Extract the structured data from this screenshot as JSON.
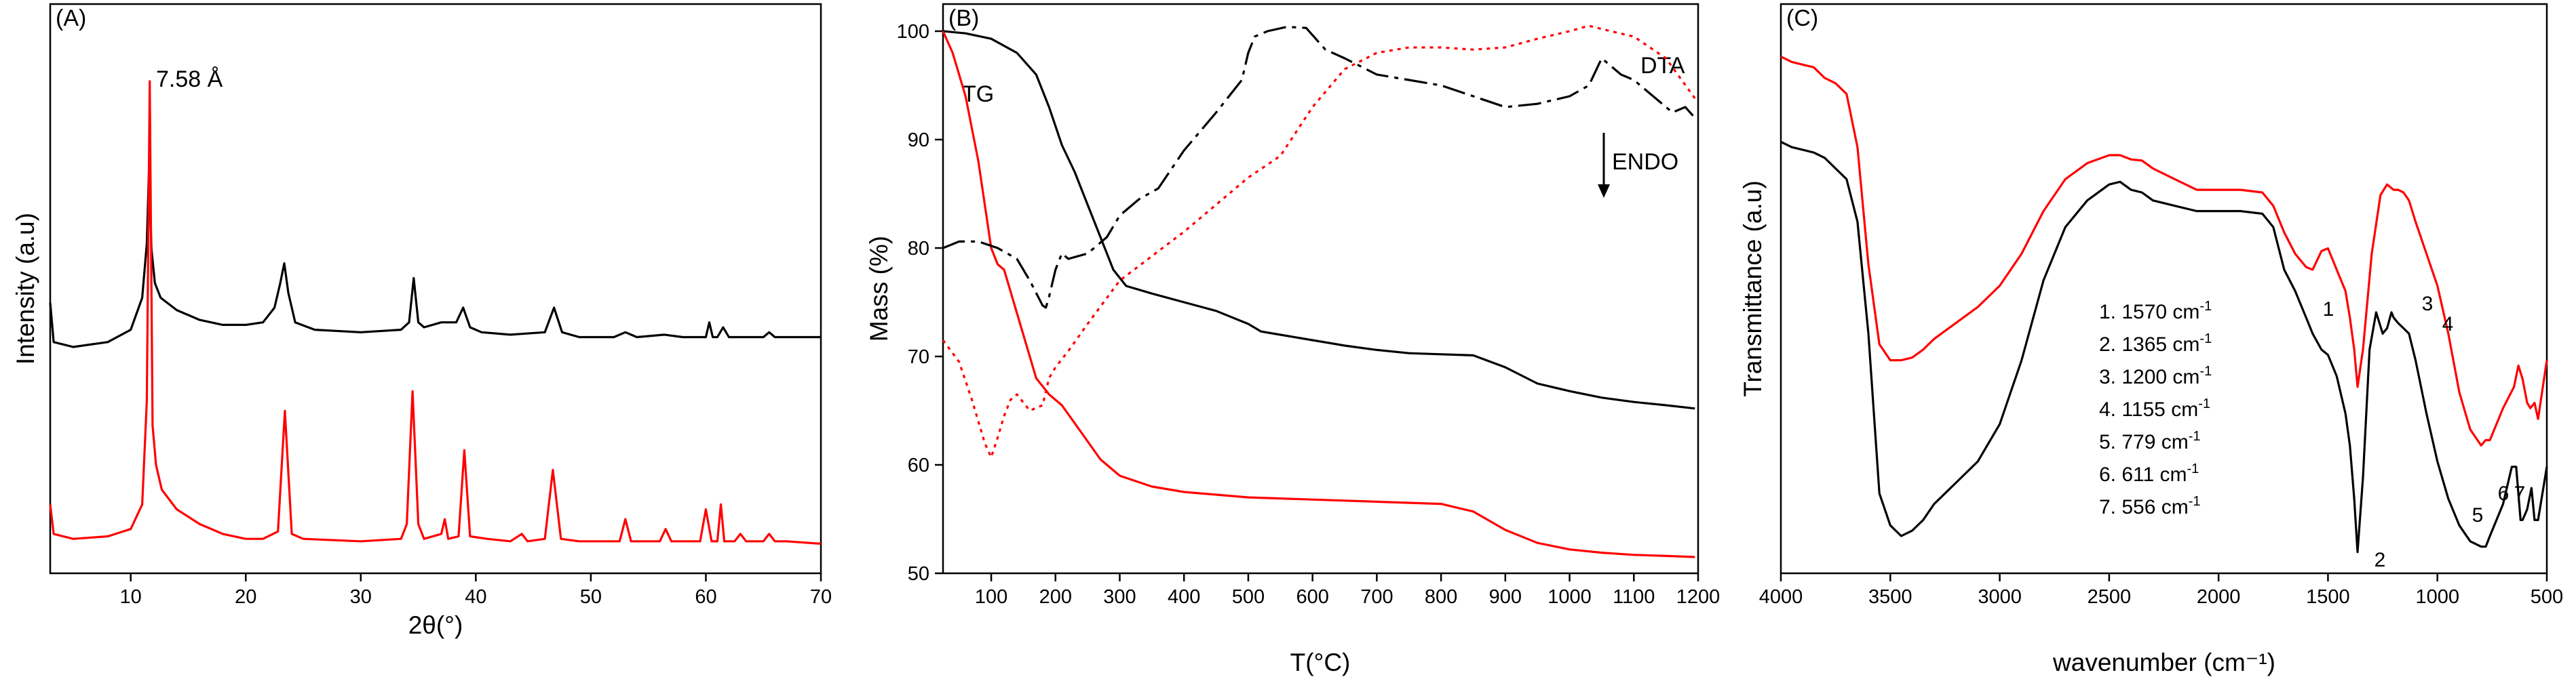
{
  "chart_data": [
    {
      "type": "line",
      "panel_label": "(A)",
      "xlabel": "2θ(°)",
      "ylabel": "Intensity (a.u)",
      "xlim": [
        3,
        70
      ],
      "ylim": [
        0,
        100
      ],
      "x_ticks": [
        "10",
        "20",
        "30",
        "40",
        "50",
        "60",
        "70"
      ],
      "y_ticks_shown": false,
      "annotation": "7.58 Å",
      "series": [
        {
          "name": "black pattern",
          "color": "#000000",
          "x": [
            3,
            3.3,
            5,
            8,
            10,
            11,
            11.4,
            11.6,
            11.8,
            12.1,
            12.6,
            14,
            16,
            18,
            20,
            21.5,
            22.5,
            23,
            23.35,
            23.7,
            24.3,
            26,
            30,
            33.5,
            34.2,
            34.6,
            35,
            35.5,
            37,
            38.3,
            38.9,
            39.5,
            40.5,
            43,
            46,
            46.8,
            47.5,
            49,
            52,
            53,
            54,
            56.4,
            58,
            60,
            60.3,
            60.6,
            61,
            61.5,
            62,
            63,
            64,
            65,
            65.5,
            66,
            68,
            70
          ],
          "y": [
            55,
            47,
            46,
            47,
            49.5,
            56,
            67,
            83,
            66,
            59,
            56,
            53.5,
            51.5,
            50.5,
            50.5,
            51,
            54,
            59,
            63,
            57,
            51,
            49.5,
            49,
            49.5,
            51,
            60,
            51,
            50,
            51,
            51,
            54,
            50,
            49,
            48.5,
            49,
            54,
            49,
            48,
            48,
            49,
            48,
            48.5,
            48,
            48,
            51,
            48,
            48,
            50,
            48,
            48,
            48,
            48,
            49,
            48,
            48,
            48
          ]
        },
        {
          "name": "red pattern",
          "color": "#ff0000",
          "x": [
            3,
            3.3,
            5,
            8,
            10,
            11,
            11.4,
            11.65,
            11.9,
            12.2,
            12.7,
            14,
            16,
            18,
            20,
            21.5,
            22.8,
            23.4,
            24,
            25,
            30,
            33.5,
            34,
            34.5,
            35,
            35.5,
            37,
            37.3,
            37.6,
            38.5,
            39,
            39.5,
            41,
            43,
            44,
            44.5,
            46,
            46.7,
            47.4,
            49,
            52.5,
            53,
            53.5,
            56,
            56.5,
            57,
            59.5,
            60,
            60.5,
            61,
            61.3,
            61.6,
            62.5,
            63,
            63.5,
            65,
            65.5,
            66,
            67,
            70
          ],
          "y": [
            14,
            8,
            7,
            7.5,
            9,
            14,
            35,
            100,
            30,
            22,
            17,
            13,
            10,
            8,
            7,
            7,
            8.5,
            33,
            8,
            7,
            6.5,
            7,
            10,
            37,
            10,
            7,
            8,
            11,
            7,
            7.5,
            25,
            7.5,
            7,
            6.5,
            8,
            6.5,
            7,
            21,
            7,
            6.5,
            6.5,
            11,
            6.5,
            6.5,
            9,
            6.5,
            6.5,
            13,
            6.5,
            6.5,
            14,
            6.5,
            6.5,
            8,
            6.5,
            6.5,
            8,
            6.5,
            6.5,
            6
          ]
        }
      ]
    },
    {
      "type": "line",
      "panel_label": "(B)",
      "xlabel": "T(°C)",
      "ylabel": "Mass (%)",
      "xlim": [
        25,
        1200
      ],
      "ylim": [
        50,
        102.5
      ],
      "x_ticks": [
        100,
        200,
        300,
        400,
        500,
        600,
        700,
        800,
        900,
        1000,
        1100,
        1200
      ],
      "y_ticks": [
        50,
        60,
        70,
        80,
        90,
        100
      ],
      "annotations": [
        "TG",
        "DTA",
        "ENDO"
      ],
      "series": [
        {
          "name": "TG black",
          "color": "#000000",
          "style": "solid",
          "x": [
            25,
            60,
            100,
            140,
            170,
            190,
            210,
            230,
            250,
            270,
            290,
            310,
            350,
            400,
            450,
            500,
            520,
            550,
            600,
            650,
            700,
            750,
            800,
            850,
            900,
            950,
            1000,
            1050,
            1100,
            1150,
            1195
          ],
          "y": [
            100,
            99.8,
            99.3,
            98,
            96,
            93,
            89.5,
            87,
            84,
            81,
            78,
            76.5,
            75.8,
            75,
            74.2,
            73,
            72.3,
            72,
            71.5,
            71,
            70.6,
            70.3,
            70.2,
            70.1,
            69,
            67.5,
            66.8,
            66.2,
            65.8,
            65.5,
            65.2
          ]
        },
        {
          "name": "TG red",
          "color": "#ff0000",
          "style": "solid",
          "x": [
            25,
            40,
            60,
            80,
            100,
            110,
            120,
            130,
            150,
            170,
            190,
            210,
            240,
            270,
            300,
            350,
            400,
            500,
            600,
            700,
            800,
            850,
            900,
            950,
            1000,
            1050,
            1100,
            1150,
            1195
          ],
          "y": [
            100,
            98,
            94,
            88,
            80,
            78.5,
            78,
            76,
            72,
            68,
            66.5,
            65.5,
            63,
            60.5,
            59,
            58,
            57.5,
            57,
            56.8,
            56.6,
            56.4,
            55.7,
            54,
            52.8,
            52.2,
            51.9,
            51.7,
            51.6,
            51.5
          ]
        },
        {
          "name": "DTA black",
          "color": "#000000",
          "style": "dashdot",
          "x": [
            25,
            50,
            80,
            110,
            140,
            160,
            180,
            185,
            190,
            200,
            210,
            220,
            250,
            280,
            300,
            330,
            360,
            400,
            450,
            490,
            500,
            510,
            530,
            560,
            590,
            620,
            650,
            700,
            750,
            800,
            850,
            900,
            950,
            1000,
            1030,
            1050,
            1080,
            1100,
            1120,
            1140,
            1160,
            1180,
            1195
          ],
          "y": [
            80,
            80.6,
            80.6,
            80,
            79,
            77,
            74.7,
            74.5,
            75.5,
            78,
            79.5,
            79,
            79.5,
            81,
            83,
            84.5,
            85.5,
            89,
            92.5,
            95.5,
            98,
            99.5,
            100,
            100.4,
            100.3,
            98.3,
            97.5,
            96,
            95.5,
            95,
            94,
            93,
            93.3,
            94,
            95,
            97.5,
            96,
            95.5,
            94.5,
            93.5,
            92.5,
            93,
            92
          ]
        },
        {
          "name": "DTA red",
          "color": "#ff0000",
          "style": "dotted",
          "x": [
            25,
            50,
            70,
            90,
            100,
            110,
            120,
            130,
            140,
            160,
            180,
            190,
            200,
            220,
            250,
            300,
            400,
            450,
            500,
            550,
            600,
            650,
            700,
            750,
            800,
            850,
            900,
            950,
            1000,
            1030,
            1050,
            1100,
            1150,
            1195
          ],
          "y": [
            71.5,
            69.5,
            66,
            62,
            60.7,
            62.5,
            64.5,
            66,
            66.5,
            65,
            65.5,
            68,
            69,
            70.5,
            73,
            77,
            81.5,
            84,
            86.5,
            88.5,
            93,
            96.5,
            98,
            98.5,
            98.5,
            98.3,
            98.5,
            99.3,
            100,
            100.5,
            100.2,
            99.5,
            97.5,
            93.8
          ]
        }
      ]
    },
    {
      "type": "line",
      "panel_label": "(C)",
      "xlabel": "wavenumber (cm⁻¹)",
      "ylabel": "Transmittance (a.u)",
      "xlim": [
        4000,
        500
      ],
      "ylim": [
        0,
        100
      ],
      "x_ticks": [
        4000,
        3500,
        3000,
        2500,
        2000,
        1500,
        1000,
        500
      ],
      "y_ticks_shown": false,
      "legend": [
        "1.  1570 cm",
        "2.  1365 cm",
        "3.  1200 cm",
        "4.  1155 cm",
        "5.  779 cm",
        "6.  611 cm",
        "7.  556 cm"
      ],
      "legend_unit_exp": "-1",
      "peak_labels": [
        "1",
        "2",
        "3",
        "4",
        "5",
        "6",
        "7"
      ],
      "series": [
        {
          "name": "red spectrum",
          "color": "#ff0000",
          "x": [
            4000,
            3950,
            3900,
            3850,
            3800,
            3750,
            3700,
            3650,
            3600,
            3550,
            3500,
            3450,
            3400,
            3350,
            3300,
            3200,
            3100,
            3000,
            2900,
            2800,
            2700,
            2600,
            2500,
            2450,
            2400,
            2350,
            2300,
            2200,
            2100,
            2000,
            1900,
            1800,
            1750,
            1700,
            1650,
            1600,
            1570,
            1530,
            1500,
            1460,
            1420,
            1400,
            1380,
            1365,
            1340,
            1300,
            1260,
            1230,
            1200,
            1180,
            1155,
            1130,
            1100,
            1050,
            1000,
            950,
            900,
            850,
            800,
            780,
            760,
            700,
            650,
            630,
            611,
            590,
            575,
            556,
            540,
            500
          ],
          "y": [
            97,
            96,
            95.5,
            95,
            93,
            92,
            90,
            80,
            58,
            43,
            40,
            40,
            40.5,
            42,
            44,
            47,
            50,
            54,
            60,
            68,
            74,
            77,
            78.5,
            78.5,
            77.7,
            77.5,
            76,
            74,
            72,
            72,
            72,
            71.5,
            69,
            64,
            60,
            57.5,
            57,
            60.5,
            61,
            57,
            53,
            48,
            42,
            35,
            42,
            60,
            71,
            73,
            72,
            72,
            71.5,
            70,
            66,
            60,
            54,
            45,
            34,
            27,
            24,
            25,
            25,
            31,
            35,
            39,
            36.5,
            32,
            31,
            32,
            29,
            40
          ]
        },
        {
          "name": "black spectrum",
          "color": "#000000",
          "x": [
            4000,
            3950,
            3900,
            3850,
            3800,
            3750,
            3700,
            3650,
            3600,
            3550,
            3500,
            3450,
            3400,
            3350,
            3300,
            3200,
            3100,
            3000,
            2900,
            2800,
            2700,
            2600,
            2500,
            2450,
            2400,
            2350,
            2300,
            2200,
            2100,
            2000,
            1900,
            1800,
            1750,
            1700,
            1650,
            1600,
            1570,
            1530,
            1500,
            1460,
            1420,
            1400,
            1380,
            1365,
            1340,
            1310,
            1280,
            1250,
            1230,
            1210,
            1200,
            1180,
            1155,
            1130,
            1100,
            1050,
            1000,
            950,
            900,
            850,
            800,
            779,
            760,
            700,
            660,
            640,
            620,
            611,
            590,
            570,
            556,
            540,
            500
          ],
          "y": [
            81,
            80,
            79.5,
            79,
            78,
            76,
            74,
            66,
            45,
            15,
            9,
            7,
            8,
            10,
            13,
            17,
            21,
            28,
            40,
            55,
            65,
            70,
            73,
            73.5,
            72,
            71.5,
            70,
            69,
            68,
            68,
            68,
            67.5,
            65,
            57,
            53,
            48,
            45,
            42,
            41,
            37,
            30,
            24,
            14,
            4,
            18,
            42,
            49,
            45,
            46,
            49,
            48,
            47,
            46,
            45,
            40,
            30,
            21,
            14,
            9,
            6,
            5,
            5,
            7,
            13,
            20,
            20,
            10,
            10,
            12,
            16,
            10,
            10,
            20
          ]
        }
      ]
    }
  ]
}
